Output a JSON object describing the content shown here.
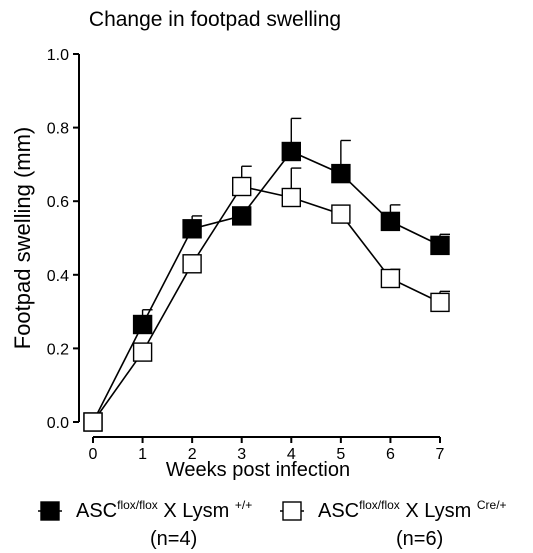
{
  "chart_data": {
    "type": "line",
    "title": "Change in footpad swelling",
    "xlabel": "Weeks post infection",
    "ylabel": "Footpad swelling (mm)",
    "x": [
      0,
      1,
      2,
      3,
      4,
      5,
      6,
      7
    ],
    "x_ticks": [
      "0",
      "1",
      "2",
      "3",
      "4",
      "5",
      "6",
      "7"
    ],
    "y_ticks": [
      "0.0",
      "0.2",
      "0.4",
      "0.6",
      "0.8",
      "1.0"
    ],
    "xlim": [
      0,
      7
    ],
    "ylim": [
      0,
      1.0
    ],
    "grid": false,
    "legend_position": "bottom",
    "series": [
      {
        "name_parts": [
          "ASC",
          "flox/flox",
          " X Lysm ",
          "+/+"
        ],
        "n": "(n=4)",
        "marker": "filled-square",
        "color": "#000000",
        "values": [
          0.0,
          0.265,
          0.525,
          0.56,
          0.735,
          0.675,
          0.545,
          0.48
        ],
        "err_upper": [
          0.0,
          0.305,
          0.56,
          0.56,
          0.825,
          0.765,
          0.59,
          0.51
        ]
      },
      {
        "name_parts": [
          "ASC",
          "flox/flox",
          " X Lysm ",
          "Cre/+"
        ],
        "n": "(n=6)",
        "marker": "open-square",
        "color": "#000000",
        "values": [
          0.0,
          0.19,
          0.43,
          0.64,
          0.61,
          0.565,
          0.39,
          0.325
        ],
        "err_upper": [
          0.0,
          0.19,
          0.43,
          0.695,
          0.69,
          0.565,
          0.415,
          0.355
        ]
      }
    ]
  }
}
